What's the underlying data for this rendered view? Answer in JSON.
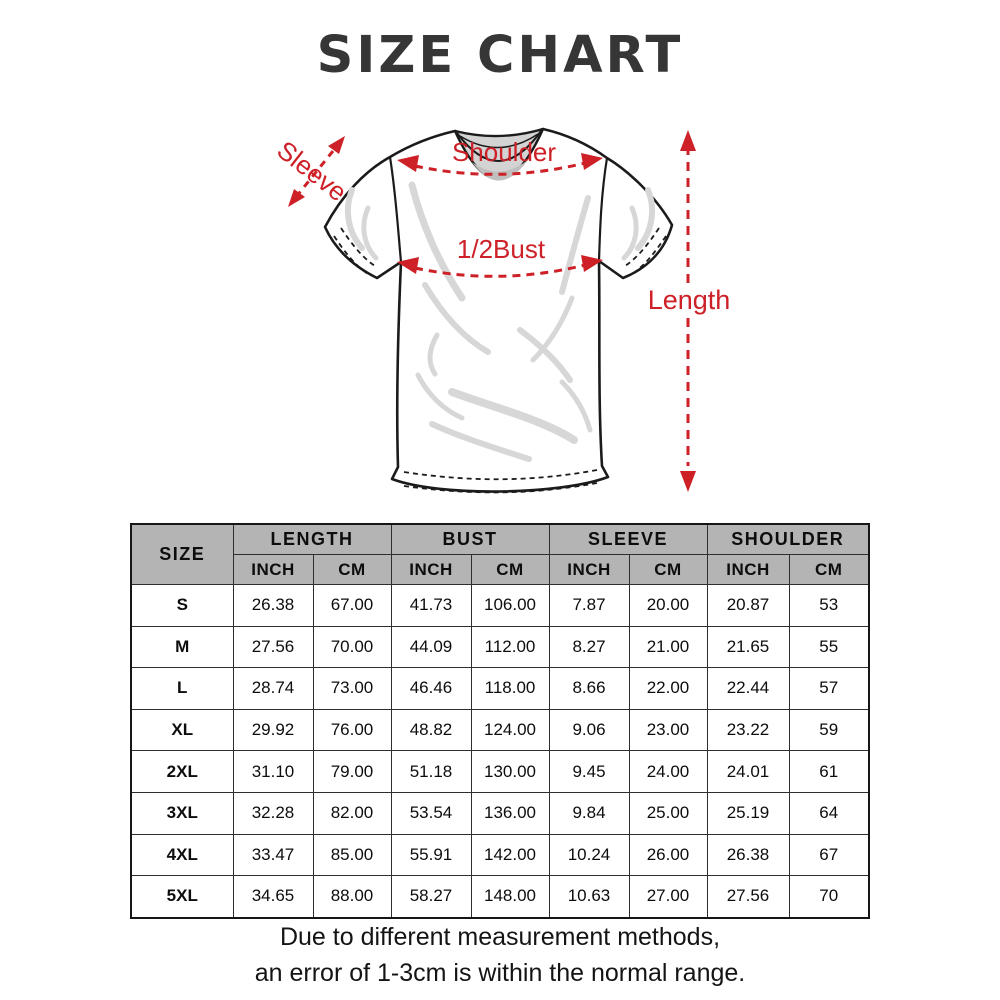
{
  "title": "SIZE CHART",
  "colors": {
    "accent_red": "#cd2027",
    "header_bg": "#b4b4b4",
    "title_color": "#363636",
    "outline": "#1b1b1b"
  },
  "diagram": {
    "labels": {
      "sleeve": "Sleeve",
      "shoulder": "Shoulder",
      "bust": "1/2Bust",
      "length": "Length"
    }
  },
  "table": {
    "size_header": "SIZE",
    "groups": [
      {
        "label": "LENGTH"
      },
      {
        "label": "BUST"
      },
      {
        "label": "SLEEVE"
      },
      {
        "label": "SHOULDER"
      }
    ],
    "unit_headers": [
      "INCH",
      "CM",
      "INCH",
      "CM",
      "INCH",
      "CM",
      "INCH",
      "CM"
    ],
    "rows": [
      {
        "size": "S",
        "values": [
          "26.38",
          "67.00",
          "41.73",
          "106.00",
          "7.87",
          "20.00",
          "20.87",
          "53"
        ]
      },
      {
        "size": "M",
        "values": [
          "27.56",
          "70.00",
          "44.09",
          "112.00",
          "8.27",
          "21.00",
          "21.65",
          "55"
        ]
      },
      {
        "size": "L",
        "values": [
          "28.74",
          "73.00",
          "46.46",
          "118.00",
          "8.66",
          "22.00",
          "22.44",
          "57"
        ]
      },
      {
        "size": "XL",
        "values": [
          "29.92",
          "76.00",
          "48.82",
          "124.00",
          "9.06",
          "23.00",
          "23.22",
          "59"
        ]
      },
      {
        "size": "2XL",
        "values": [
          "31.10",
          "79.00",
          "51.18",
          "130.00",
          "9.45",
          "24.00",
          "24.01",
          "61"
        ]
      },
      {
        "size": "3XL",
        "values": [
          "32.28",
          "82.00",
          "53.54",
          "136.00",
          "9.84",
          "25.00",
          "25.19",
          "64"
        ]
      },
      {
        "size": "4XL",
        "values": [
          "33.47",
          "85.00",
          "55.91",
          "142.00",
          "10.24",
          "26.00",
          "26.38",
          "67"
        ]
      },
      {
        "size": "5XL",
        "values": [
          "34.65",
          "88.00",
          "58.27",
          "148.00",
          "10.63",
          "27.00",
          "27.56",
          "70"
        ]
      }
    ]
  },
  "footer": {
    "line1": "Due to different measurement methods,",
    "line2": "an error of 1-3cm is within the normal range."
  }
}
